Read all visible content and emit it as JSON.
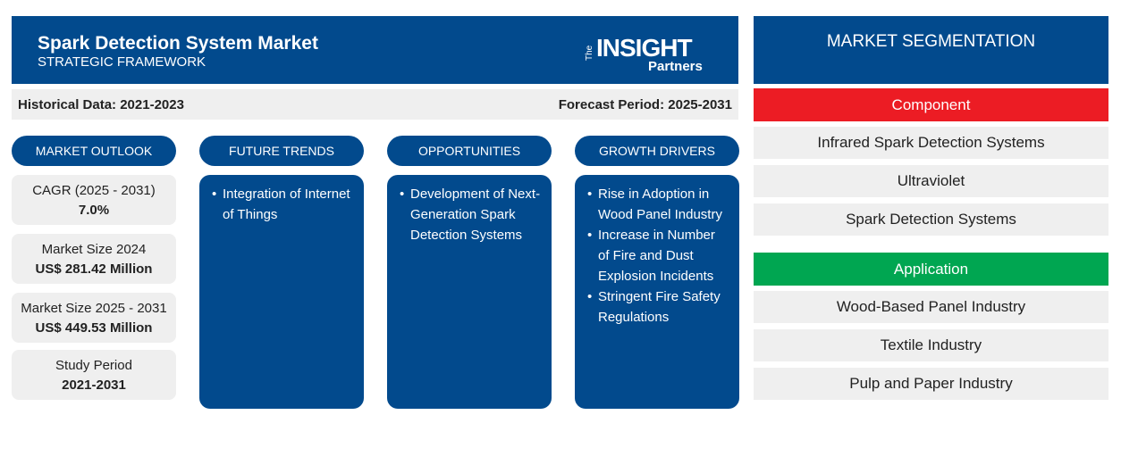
{
  "header": {
    "title": "Spark Detection System Market",
    "subtitle": "STRATEGIC FRAMEWORK",
    "logo": {
      "the": "The",
      "insight": "INSIGHT",
      "partners": "Partners"
    }
  },
  "periods": {
    "historical": "Historical Data: 2021-2023",
    "forecast": "Forecast Period: 2025-2031"
  },
  "columns": [
    {
      "title": "MARKET OUTLOOK",
      "cards": [
        {
          "label": "CAGR (2025 - 2031)",
          "value": "7.0%"
        },
        {
          "label": "Market Size 2024",
          "value": "US$ 281.42 Million"
        },
        {
          "label": "Market Size 2025 - 2031",
          "value": "US$ 449.53 Million"
        },
        {
          "label": "Study Period",
          "value": "2021-2031"
        }
      ]
    },
    {
      "title": "FUTURE TRENDS",
      "items": [
        "Integration of Internet of Things"
      ]
    },
    {
      "title": "OPPORTUNITIES",
      "items": [
        "Development of Next-Generation Spark Detection Systems"
      ]
    },
    {
      "title": "GROWTH DRIVERS",
      "items": [
        "Rise in Adoption in Wood Panel Industry",
        "Increase in Number of Fire and Dust Explosion Incidents",
        "Stringent Fire Safety Regulations"
      ]
    }
  ],
  "segmentation": {
    "title": "MARKET SEGMENTATION",
    "groups": [
      {
        "name": "Component",
        "items": [
          "Infrared Spark Detection Systems",
          "Ultraviolet",
          "Spark Detection Systems"
        ]
      },
      {
        "name": "Application",
        "items": [
          "Wood-Based Panel Industry",
          "Textile Industry",
          "Pulp and Paper Industry"
        ]
      }
    ]
  }
}
